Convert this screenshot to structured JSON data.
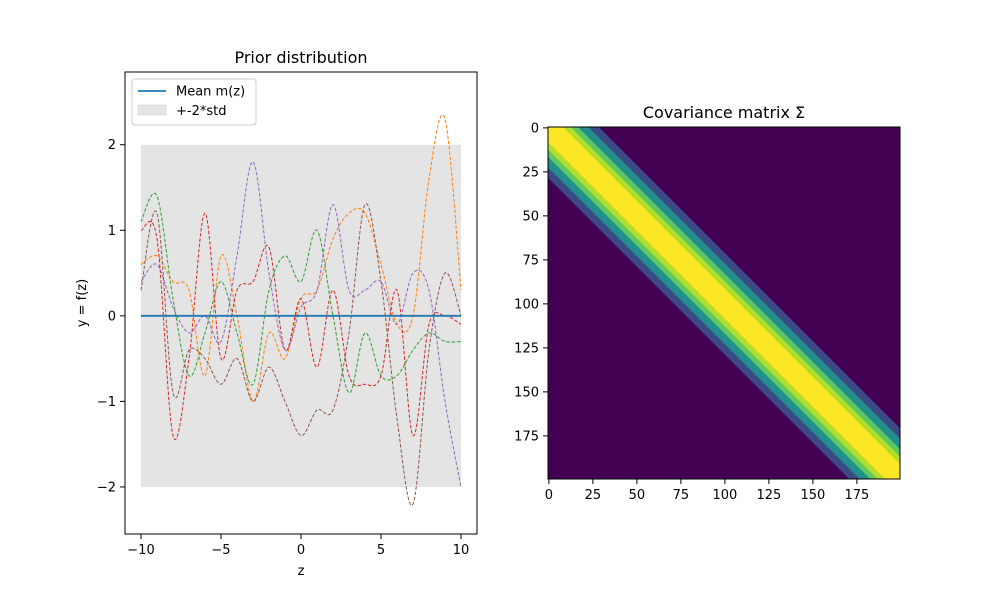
{
  "chart_data": [
    {
      "type": "line",
      "title": "Prior distribution",
      "xlabel": "z",
      "ylabel": "y = f(z)",
      "xlim": [
        -11,
        11
      ],
      "ylim": [
        -2.55,
        2.85
      ],
      "xticks": [
        -10,
        -5,
        0,
        5,
        10
      ],
      "xtick_labels": [
        "−10",
        "−5",
        "0",
        "5",
        "10"
      ],
      "yticks": [
        -2,
        -1,
        0,
        1,
        2
      ],
      "ytick_labels": [
        "−2",
        "−1",
        "0",
        "1",
        "2"
      ],
      "grid": false,
      "legend": {
        "placement": "upper-left",
        "entries": [
          {
            "label": "Mean m(z)",
            "kind": "line",
            "color": "#1f77b4"
          },
          {
            "label": "+-2*std",
            "kind": "patch",
            "color": "#e4e4e4"
          }
        ]
      },
      "band": {
        "x_range": [
          -10,
          10
        ],
        "lower": -2,
        "upper": 2,
        "color": "#e4e4e4"
      },
      "mean": {
        "x_range": [
          -10,
          10
        ],
        "y": 0,
        "color": "#1f77b4"
      },
      "samples": [
        {
          "color": "#ff7f0e",
          "x": [
            -10,
            -9,
            -8,
            -7,
            -6,
            -5,
            -4,
            -3,
            -2,
            -1,
            0,
            1,
            2,
            3,
            4,
            5,
            6,
            7,
            8,
            9,
            10
          ],
          "y": [
            0.6,
            0.7,
            0.4,
            0.3,
            -0.7,
            0.7,
            0.0,
            -1.0,
            -0.2,
            -0.5,
            0.2,
            0.3,
            0.9,
            1.2,
            1.2,
            0.6,
            -0.1,
            0.0,
            1.6,
            2.3,
            0.3
          ]
        },
        {
          "color": "#2ca02c",
          "x": [
            -10,
            -9,
            -8,
            -7,
            -6,
            -5,
            -4,
            -3,
            -2,
            -1,
            0,
            1,
            2,
            3,
            4,
            5,
            6,
            7,
            8,
            9,
            10
          ],
          "y": [
            1.1,
            1.4,
            0.2,
            -0.7,
            -0.2,
            0.4,
            -0.2,
            -0.8,
            0.3,
            0.7,
            0.4,
            1.0,
            0.0,
            -0.9,
            -0.2,
            -0.7,
            -0.7,
            -0.4,
            -0.2,
            -0.3,
            -0.3
          ]
        },
        {
          "color": "#d62728",
          "x": [
            -10,
            -9,
            -8,
            -7,
            -6,
            -5,
            -4,
            -3,
            -2,
            -1,
            0,
            1,
            2,
            3,
            4,
            5,
            6,
            7,
            8,
            9,
            10
          ],
          "y": [
            1.0,
            0.9,
            -1.4,
            -0.5,
            1.2,
            -0.5,
            0.3,
            0.4,
            0.8,
            -0.4,
            0.2,
            -0.6,
            0.3,
            -0.7,
            -0.8,
            -0.7,
            0.3,
            -1.4,
            -0.1,
            0.0,
            -0.1
          ]
        },
        {
          "color": "#9467bd",
          "x": [
            -10,
            -9,
            -8,
            -7,
            -6,
            -5,
            -4,
            -3,
            -2,
            -1,
            0,
            1,
            2,
            3,
            4,
            5,
            6,
            7,
            8,
            9,
            10
          ],
          "y": [
            0.4,
            0.6,
            0.1,
            -0.2,
            0.0,
            -0.3,
            0.7,
            1.8,
            0.5,
            -0.4,
            0.1,
            0.3,
            1.3,
            0.3,
            0.3,
            0.4,
            -0.1,
            0.5,
            0.3,
            -1.0,
            -2.0
          ]
        },
        {
          "color": "#8c564b",
          "x": [
            -10,
            -9,
            -8,
            -7,
            -6,
            -5,
            -4,
            -3,
            -2,
            -1,
            0,
            1,
            2,
            3,
            4,
            5,
            6,
            7,
            8,
            9,
            10
          ],
          "y": [
            0.3,
            1.2,
            -0.9,
            -0.4,
            -0.5,
            -0.8,
            -0.5,
            -1.0,
            -0.6,
            -1.0,
            -1.4,
            -1.1,
            -1.1,
            -0.2,
            1.3,
            0.4,
            -1.2,
            -2.2,
            -0.4,
            0.5,
            0.0
          ]
        }
      ]
    },
    {
      "type": "heatmap",
      "title": "Covariance matrix Σ",
      "xlim": [
        0,
        199
      ],
      "ylim": [
        199,
        0
      ],
      "xticks": [
        0,
        25,
        50,
        75,
        100,
        125,
        150,
        175
      ],
      "yticks": [
        0,
        25,
        50,
        75,
        100,
        125,
        150,
        175
      ],
      "size": 200,
      "colormap": [
        "#440154",
        "#3b528b",
        "#21918c",
        "#5ec962",
        "#fde725"
      ],
      "band_width": 12
    }
  ]
}
